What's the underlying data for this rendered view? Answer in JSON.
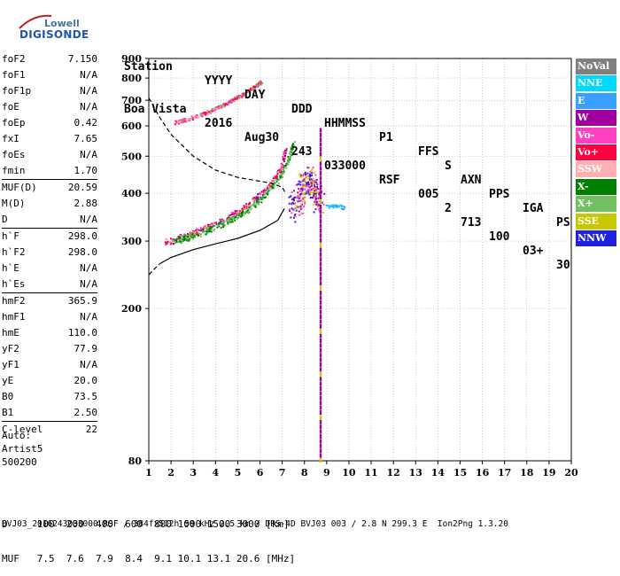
{
  "logo": {
    "word1": "Lowell",
    "word2": "DIGISONDE"
  },
  "header": {
    "labels": [
      "Station",
      "YYYY",
      "DAY",
      "DDD",
      "HHMMSS",
      "P1",
      "FFS",
      "S",
      "AXN",
      "PPS",
      "IGA",
      "PS"
    ],
    "values": [
      "Boa Vista",
      "2016",
      "Aug30",
      "243",
      "033000",
      "RSF",
      "005",
      "2",
      "713",
      "100",
      "03+",
      "30"
    ]
  },
  "parameters": {
    "group1": [
      {
        "k": "foF2",
        "v": "7.150"
      },
      {
        "k": "foF1",
        "v": "N/A"
      },
      {
        "k": "foF1p",
        "v": "N/A"
      },
      {
        "k": "foE",
        "v": "N/A"
      },
      {
        "k": "foEp",
        "v": "0.42"
      },
      {
        "k": "fxI",
        "v": "7.65"
      },
      {
        "k": "foEs",
        "v": "N/A"
      },
      {
        "k": "fmin",
        "v": "1.70"
      }
    ],
    "group2": [
      {
        "k": "MUF(D)",
        "v": "20.59"
      },
      {
        "k": "M(D)",
        "v": "2.88"
      },
      {
        "k": "D",
        "v": "N/A"
      }
    ],
    "group3": [
      {
        "k": "h`F",
        "v": "298.0"
      },
      {
        "k": "h`F2",
        "v": "298.0"
      },
      {
        "k": "h`E",
        "v": "N/A"
      },
      {
        "k": "h`Es",
        "v": "N/A"
      }
    ],
    "group4": [
      {
        "k": "hmF2",
        "v": "365.9"
      },
      {
        "k": "hmF1",
        "v": "N/A"
      },
      {
        "k": "hmE",
        "v": "110.0"
      },
      {
        "k": "yF2",
        "v": "77.9"
      },
      {
        "k": "yF1",
        "v": "N/A"
      },
      {
        "k": "yE",
        "v": "20.0"
      },
      {
        "k": "B0",
        "v": "73.5"
      },
      {
        "k": "B1",
        "v": "2.50"
      }
    ],
    "group5": [
      {
        "k": "C-level",
        "v": "22"
      }
    ]
  },
  "auto": {
    "line1": "Auto:",
    "line2": "Artist5",
    "line3": "500200"
  },
  "dmuf": {
    "d_line": "D     100  200  400  600  800 1000 1500 3000 [km]",
    "muf_line": "MUF   7.5  7.6  7.9  8.4  9.1 10.1 13.1 20.6 [MHz]"
  },
  "footer": "BVJ03_2016243033000.RSF / 384fx512h 50 kHz 2.5 km / DPS-4D BVJ03 003 / 2.8 N 299.3 E  Ion2Png 1.3.20",
  "legend": [
    {
      "label": "NoVal",
      "color": "#808080"
    },
    {
      "label": "NNE",
      "color": "#00d8ff"
    },
    {
      "label": "E",
      "color": "#3aa0ff"
    },
    {
      "label": "W",
      "color": "#a000a0"
    },
    {
      "label": "Vo-",
      "color": "#ff40c0"
    },
    {
      "label": "Vo+",
      "color": "#ff0040"
    },
    {
      "label": "SSW",
      "color": "#ffb0b0"
    },
    {
      "label": "X-",
      "color": "#008000"
    },
    {
      "label": "X+",
      "color": "#70c060"
    },
    {
      "label": "SSE",
      "color": "#c8c800"
    },
    {
      "label": "NNW",
      "color": "#2020e0"
    }
  ],
  "chart_data": {
    "type": "scatter",
    "title": "",
    "xlabel": "",
    "ylabel": "",
    "xlim": [
      1,
      20
    ],
    "ylim": [
      80,
      900
    ],
    "x_ticks": [
      "1",
      "2",
      "3",
      "4",
      "5",
      "6",
      "7",
      "8",
      "9",
      "10",
      "11",
      "12",
      "13",
      "14",
      "15",
      "16",
      "17",
      "18",
      "19",
      "20"
    ],
    "y_ticks": [
      "80",
      "200",
      "300",
      "400",
      "500",
      "600",
      "700",
      "800",
      "900"
    ],
    "y_tick_values": [
      80,
      200,
      300,
      400,
      500,
      600,
      700,
      800,
      900
    ],
    "y_scale": "log",
    "grid": true,
    "traces": [
      {
        "name": "F2 o-trace",
        "color": "#ff0040",
        "x": [
          1.75,
          2.2,
          2.8,
          3.4,
          4.0,
          4.6,
          5.2,
          5.8,
          6.3,
          6.7,
          7.0,
          7.1,
          7.15
        ],
        "y": [
          298,
          302,
          310,
          320,
          332,
          345,
          362,
          385,
          410,
          440,
          470,
          500,
          520
        ]
      },
      {
        "name": "F2 x-trace",
        "color": "#008000",
        "x": [
          2.1,
          2.6,
          3.2,
          3.8,
          4.4,
          5.0,
          5.6,
          6.2,
          6.8,
          7.3,
          7.55
        ],
        "y": [
          298,
          304,
          312,
          322,
          334,
          348,
          365,
          392,
          430,
          490,
          545
        ]
      },
      {
        "name": "second hop",
        "color": "#ff0040",
        "x": [
          2.2,
          3.0,
          3.8,
          4.6,
          5.2,
          5.8,
          6.1
        ],
        "y": [
          610,
          630,
          655,
          690,
          720,
          760,
          780
        ]
      },
      {
        "name": "W scatter",
        "color": "#a000a0",
        "x": [
          7.5,
          7.8,
          8.0,
          8.2,
          8.5,
          8.7
        ],
        "y": [
          360,
          390,
          420,
          440,
          400,
          380
        ]
      },
      {
        "name": "NNE",
        "color": "#00d8ff",
        "x": [
          9.0,
          9.4,
          9.8
        ],
        "y": [
          368,
          372,
          366
        ]
      }
    ],
    "profile_line": {
      "color": "#000000",
      "x": [
        1.5,
        2.0,
        3.0,
        4.0,
        5.0,
        6.0,
        6.8,
        7.1
      ],
      "y": [
        262,
        272,
        285,
        295,
        305,
        320,
        340,
        365
      ]
    },
    "muf_curve_dashed": {
      "color": "#000000",
      "x": [
        1.0,
        1.5,
        2.0,
        3.0,
        4.0,
        5.0,
        6.0,
        6.5,
        7.0,
        7.15
      ],
      "y": [
        710,
        630,
        570,
        500,
        460,
        440,
        430,
        425,
        415,
        400
      ]
    },
    "profile_lower": {
      "color": "#000000",
      "x": [
        1.0,
        1.2,
        1.5
      ],
      "y": [
        245,
        252,
        262
      ]
    },
    "vertical_line": {
      "x": 8.72,
      "y_from": 80,
      "y_to": 600,
      "colors": [
        "#a000a0",
        "#c8c800"
      ]
    }
  }
}
